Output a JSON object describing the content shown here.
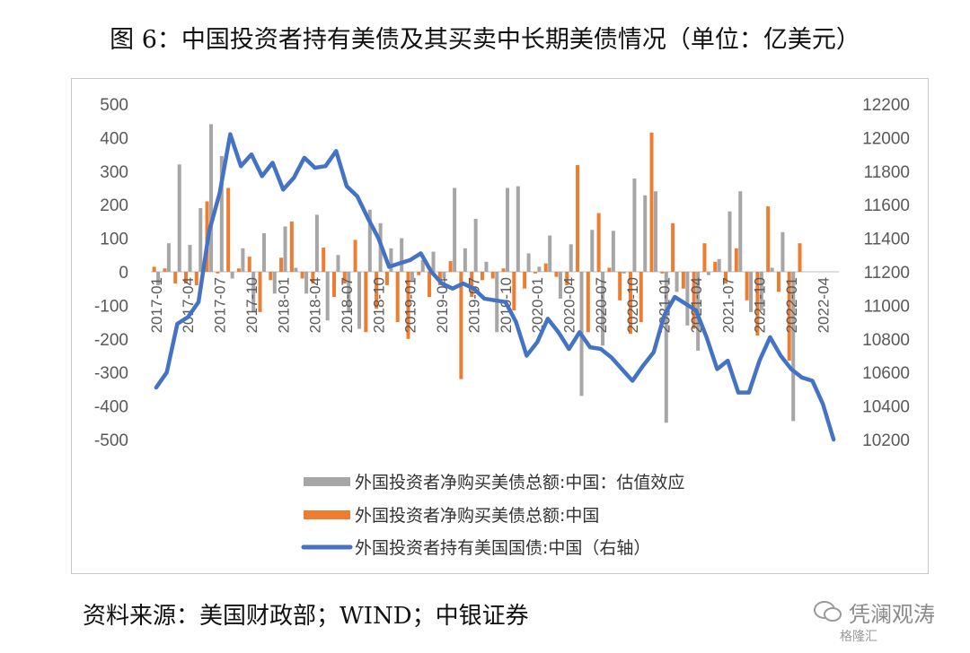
{
  "title": "图 6：中国投资者持有美债及其买卖中长期美债情况（单位：亿美元）",
  "source": "资料来源：美国财政部；WIND；中银证券",
  "watermark": {
    "name": "凭澜观涛",
    "sub": "格隆汇"
  },
  "colors": {
    "gray": "#a6a6a6",
    "orange": "#ed7d31",
    "blue": "#4472c4",
    "axis": "#bfbfbf",
    "text": "#595959"
  },
  "chart_data": {
    "type": "bar+line",
    "left_axis": {
      "min": -500,
      "max": 500,
      "step": 100
    },
    "right_axis": {
      "min": 10200,
      "max": 12200,
      "step": 200
    },
    "x_tick_labels": [
      "2017-01",
      "2017-04",
      "2017-07",
      "2017-10",
      "2018-01",
      "2018-04",
      "2018-07",
      "2018-10",
      "2019-01",
      "2019-04",
      "2019-07",
      "2019-10",
      "2020-01",
      "2020-04",
      "2020-07",
      "2020-10",
      "2021-01",
      "2021-04",
      "2021-07",
      "2021-10",
      "2022-01",
      "2022-04"
    ],
    "series": [
      {
        "name": "外国投资者净购买美债总额:中国：估值效应",
        "type": "bar",
        "axis": "left",
        "values": [
          -40,
          85,
          320,
          80,
          190,
          440,
          345,
          -20,
          70,
          -120,
          115,
          -65,
          135,
          12,
          -65,
          170,
          -145,
          50,
          -120,
          -170,
          185,
          145,
          70,
          100,
          -25,
          35,
          60,
          -20,
          250,
          70,
          158,
          30,
          -180,
          250,
          255,
          55,
          15,
          108,
          -80,
          82,
          -370,
          125,
          -220,
          122,
          -5,
          278,
          228,
          240,
          -450,
          -60,
          -160,
          -235,
          -10,
          38,
          180,
          240,
          -120,
          -115,
          12,
          118,
          -445
        ],
        "labels": [
          "2017-01",
          "2017-02",
          "2017-03",
          "2017-04",
          "2017-05",
          "2017-06",
          "2017-07",
          "2017-08",
          "2017-09",
          "2017-10",
          "2017-11",
          "2017-12",
          "2018-01",
          "2018-02",
          "2018-03",
          "2018-04",
          "2018-05",
          "2018-06",
          "2018-07",
          "2018-08",
          "2018-09",
          "2018-10",
          "2018-11",
          "2018-12",
          "2019-01",
          "2019-02",
          "2019-03",
          "2019-04",
          "2019-05",
          "2019-06",
          "2019-07",
          "2019-08",
          "2019-09",
          "2019-10",
          "2019-11",
          "2019-12",
          "2020-01",
          "2020-02",
          "2020-03",
          "2020-04",
          "2020-05",
          "2020-06",
          "2020-07",
          "2020-08",
          "2020-09",
          "2020-10",
          "2020-11",
          "2020-12",
          "2021-01",
          "2021-02",
          "2021-03",
          "2021-04",
          "2021-05",
          "2021-06",
          "2021-07",
          "2021-08",
          "2021-09",
          "2021-10",
          "2021-11",
          "2021-12",
          "2022-01"
        ]
      },
      {
        "name": "外国投资者净购买美债总额:中国",
        "type": "bar",
        "axis": "left",
        "values": [
          15,
          10,
          -35,
          -35,
          -40,
          210,
          -5,
          250,
          10,
          45,
          -120,
          -25,
          42,
          150,
          -20,
          -35,
          72,
          -75,
          -35,
          95,
          -180,
          -110,
          -40,
          -150,
          -200,
          -10,
          -75,
          -40,
          32,
          -320,
          -75,
          -25,
          -20,
          10,
          -115,
          -50,
          -5,
          25,
          -15,
          -40,
          318,
          -180,
          175,
          12,
          -85,
          -185,
          -150,
          415,
          -5,
          145,
          -50,
          -170,
          85,
          30,
          -35,
          70,
          -85,
          -190,
          195,
          -60,
          -265,
          85
        ],
        "labels": [
          "2017-01",
          "2017-02",
          "2017-03",
          "2017-04",
          "2017-05",
          "2017-06",
          "2017-07",
          "2017-08",
          "2017-09",
          "2017-10",
          "2017-11",
          "2017-12",
          "2018-01",
          "2018-02",
          "2018-03",
          "2018-04",
          "2018-05",
          "2018-06",
          "2018-07",
          "2018-08",
          "2018-09",
          "2018-10",
          "2018-11",
          "2018-12",
          "2019-01",
          "2019-02",
          "2019-03",
          "2019-04",
          "2019-05",
          "2019-06",
          "2019-07",
          "2019-08",
          "2019-09",
          "2019-10",
          "2019-11",
          "2019-12",
          "2020-01",
          "2020-02",
          "2020-03",
          "2020-04",
          "2020-05",
          "2020-06",
          "2020-07",
          "2020-08",
          "2020-09",
          "2020-10",
          "2020-11",
          "2020-12",
          "2021-01",
          "2021-02",
          "2021-03",
          "2021-04",
          "2021-05",
          "2021-06",
          "2021-07",
          "2021-08",
          "2021-09",
          "2021-10",
          "2021-11",
          "2021-12",
          "2022-01",
          "2022-02"
        ]
      },
      {
        "name": "外国投资者持有美国国债:中国（右轴）",
        "type": "line",
        "axis": "right",
        "values": [
          10510,
          10600,
          10890,
          10930,
          11020,
          11440,
          11670,
          12020,
          11830,
          11900,
          11770,
          11850,
          11690,
          11760,
          11880,
          11820,
          11830,
          11920,
          11710,
          11650,
          11520,
          11400,
          11230,
          11250,
          11270,
          11310,
          11200,
          11130,
          11100,
          11130,
          11100,
          11040,
          11030,
          11020,
          10900,
          10700,
          10780,
          10920,
          10840,
          10740,
          10840,
          10750,
          10740,
          10690,
          10620,
          10550,
          10640,
          10720,
          10940,
          11050,
          11010,
          10970,
          10810,
          10620,
          10670,
          10480,
          10480,
          10670,
          10810,
          10700,
          10620,
          10570,
          10550,
          10410,
          10200
        ]
      }
    ],
    "legend": [
      "外国投资者净购买美债总额:中国：估值效应",
      "外国投资者净购买美债总额:中国",
      "外国投资者持有美国国债:中国（右轴）"
    ],
    "legend_position": "bottom"
  }
}
